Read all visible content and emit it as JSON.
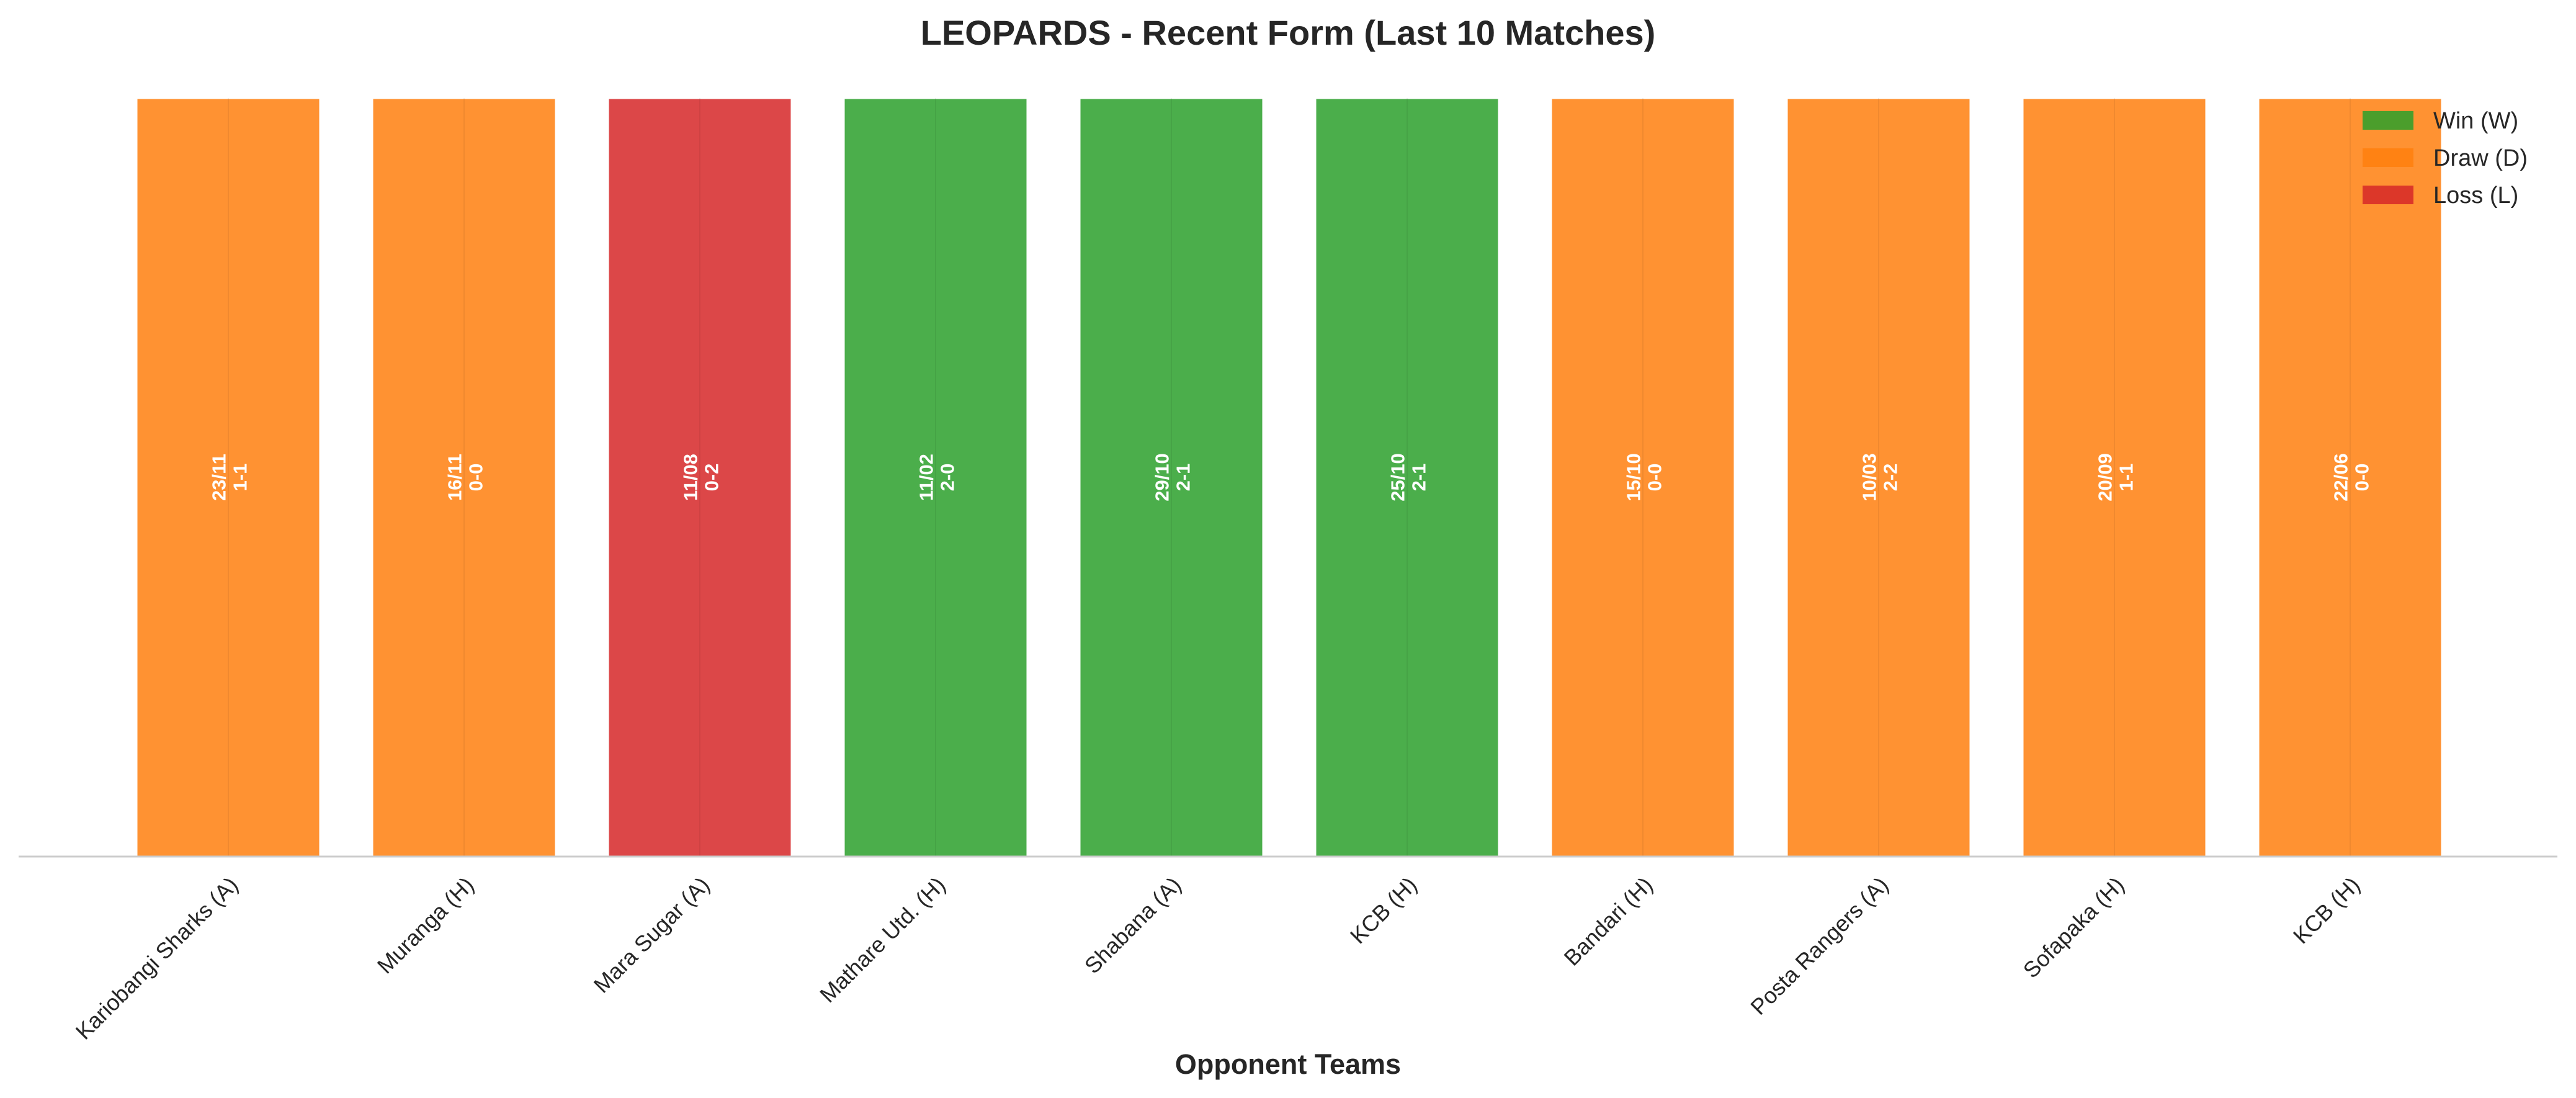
{
  "chart_data": {
    "type": "bar",
    "title": "LEOPARDS - Recent Form (Last 10 Matches)",
    "xlabel": "Opponent Teams",
    "ylabel": "",
    "grid": false,
    "legend_position": "top-right",
    "categories": [
      "Kariobangi Sharks (A)",
      "Muranga (H)",
      "Mara Sugar (A)",
      "Mathare Utd. (H)",
      "Shabana (A)",
      "KCB (H)",
      "Bandari (H)",
      "Posta Rangers (A)",
      "Sofapaka (H)",
      "KCB (H)"
    ],
    "values": [
      1,
      1,
      1,
      1,
      1,
      1,
      1,
      1,
      1,
      1
    ],
    "ylim": [
      0,
      1
    ],
    "results": [
      "D",
      "D",
      "L",
      "W",
      "W",
      "W",
      "D",
      "D",
      "D",
      "D"
    ],
    "dates": [
      "23/11",
      "16/11",
      "11/08",
      "11/02",
      "29/10",
      "25/10",
      "15/10",
      "10/03",
      "20/09",
      "22/06"
    ],
    "scores": [
      "1-1",
      "0-0",
      "0-2",
      "2-0",
      "2-1",
      "2-1",
      "0-0",
      "2-2",
      "1-1",
      "0-0"
    ],
    "legend": [
      {
        "key": "W",
        "label": "Win (W)",
        "color": "#2ca02c"
      },
      {
        "key": "D",
        "label": "Draw (D)",
        "color": "#ff7f0e"
      },
      {
        "key": "L",
        "label": "Loss (L)",
        "color": "#d62728"
      }
    ]
  }
}
